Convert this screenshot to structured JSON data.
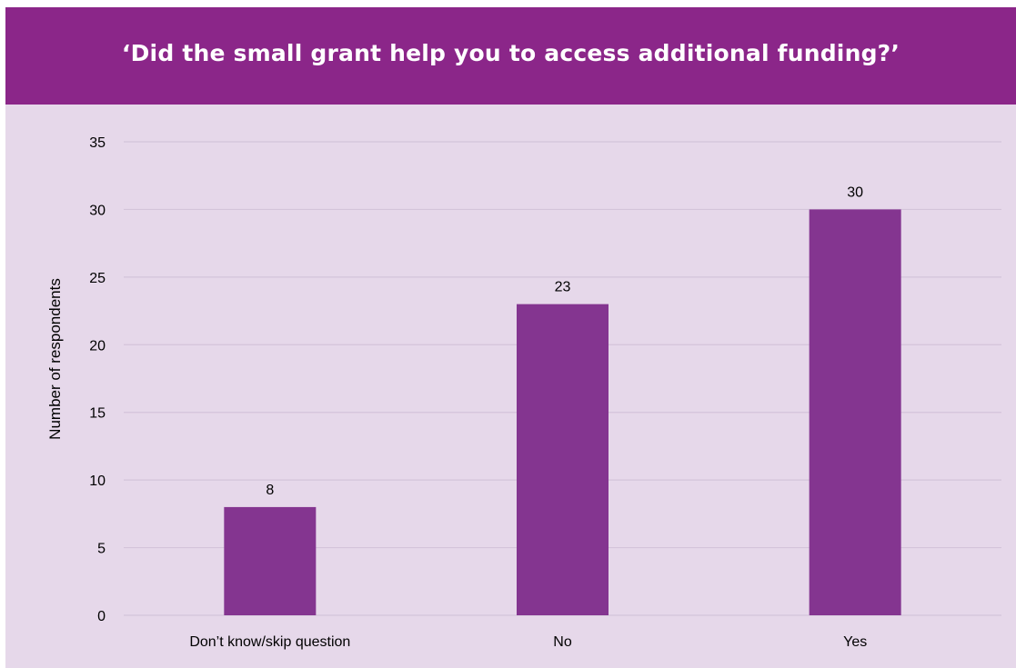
{
  "chart_data": {
    "type": "bar",
    "title": "‘Did the small grant help you to access additional funding?’",
    "ylabel": "Number of respondents",
    "xlabel": "",
    "categories": [
      "Don’t know/skip question",
      "No",
      "Yes"
    ],
    "values": [
      8,
      23,
      30
    ],
    "ylim": [
      0,
      35
    ],
    "yticks": [
      0,
      5,
      10,
      15,
      20,
      25,
      30,
      35
    ],
    "grid": true,
    "legend": "none"
  },
  "colors": {
    "header_bg": "#8b2689",
    "plot_bg": "#e6d8ea",
    "bar": "#843590",
    "grid": "#d4c4da"
  }
}
